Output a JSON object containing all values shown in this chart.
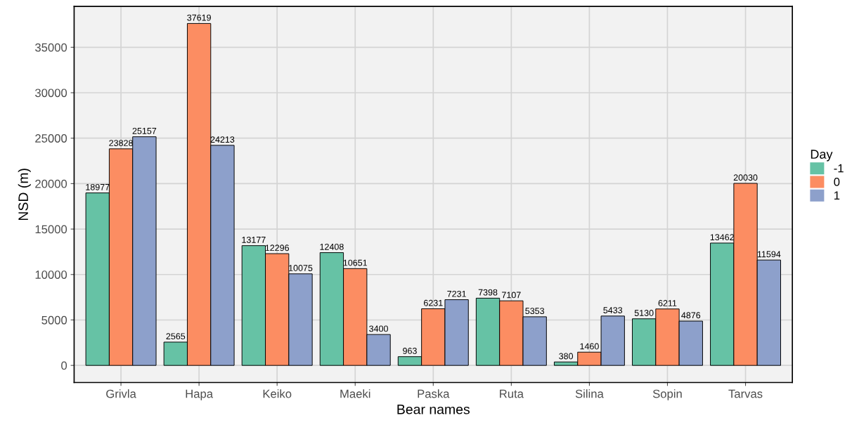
{
  "chart_data": {
    "type": "bar",
    "xlabel": "Bear names",
    "ylabel": "NSD (m)",
    "legend_title": "Day",
    "categories": [
      "Grivla",
      "Hapa",
      "Keiko",
      "Maeki",
      "Paska",
      "Ruta",
      "Silina",
      "Sopin",
      "Tarvas"
    ],
    "series": [
      {
        "name": "-1",
        "color": "#66c2a5",
        "values": [
          18977,
          2565,
          13177,
          12408,
          963,
          7398,
          380,
          5130,
          13462
        ]
      },
      {
        "name": "0",
        "color": "#fc8d62",
        "values": [
          23828,
          37619,
          12296,
          10651,
          6231,
          7107,
          1460,
          6211,
          20030
        ]
      },
      {
        "name": "1",
        "color": "#8da0cb",
        "values": [
          25157,
          24213,
          10075,
          3400,
          7231,
          5353,
          5433,
          4876,
          11594
        ]
      }
    ],
    "ylim": [
      -1881,
      39500
    ],
    "yticks": [
      0,
      5000,
      10000,
      15000,
      20000,
      25000,
      30000,
      35000
    ],
    "grid": true,
    "legend": "right",
    "data_labels": true
  }
}
